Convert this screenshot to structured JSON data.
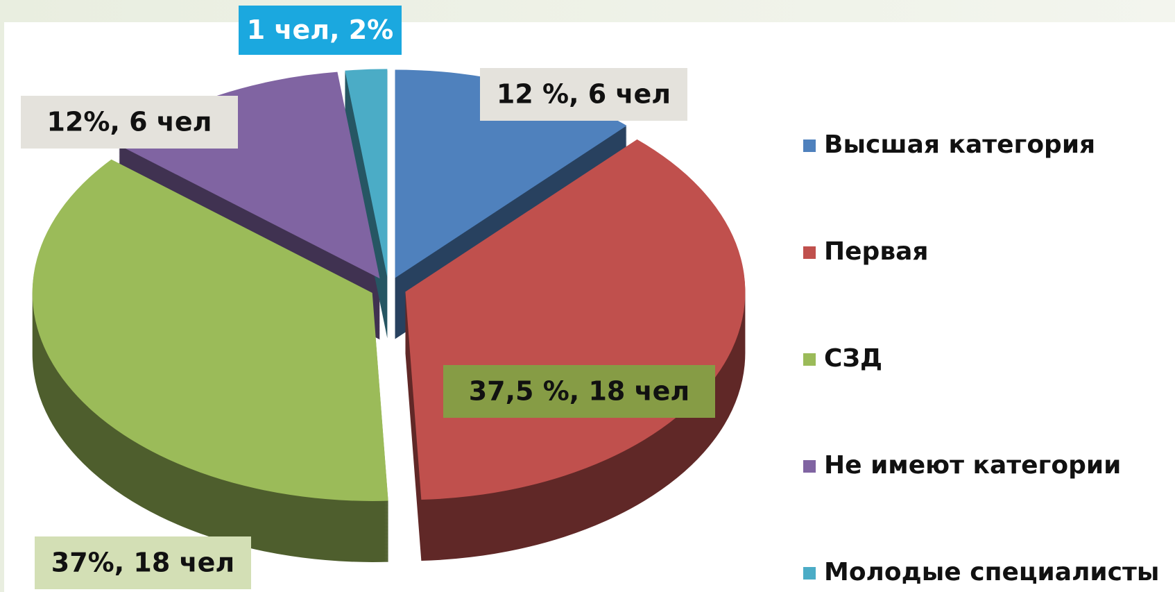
{
  "chart_data": {
    "type": "pie",
    "categories": [
      "Высшая категория",
      "Первая",
      "СЗД",
      "Не имеют категории",
      "Молодые специалисты"
    ],
    "values": [
      12,
      37.5,
      37,
      12,
      2
    ],
    "value_labels": [
      "12 %, 6 чел",
      "37,5 %, 18 чел",
      "37%, 18 чел",
      "12%, 6 чел",
      "1 чел, 2%"
    ],
    "colors": [
      "#4f81bd",
      "#c0504d",
      "#9bbb59",
      "#8064a2",
      "#4bacc6"
    ],
    "legend": "right"
  }
}
